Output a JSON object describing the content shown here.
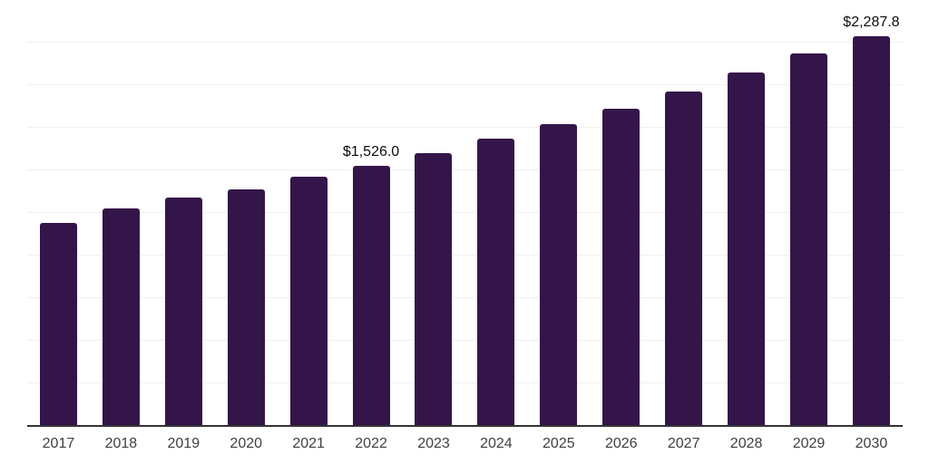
{
  "page": {
    "background_color": "#ffffff"
  },
  "chart_data": {
    "type": "bar",
    "title": "",
    "xlabel": "",
    "ylabel": "",
    "categories": [
      "2017",
      "2018",
      "2019",
      "2020",
      "2021",
      "2022",
      "2023",
      "2024",
      "2025",
      "2026",
      "2027",
      "2028",
      "2029",
      "2030"
    ],
    "values": [
      1190,
      1277,
      1341,
      1390,
      1464,
      1526.0,
      1600,
      1688,
      1769,
      1863,
      1965,
      2074,
      2188,
      2287.8
    ],
    "data_labels": [
      "",
      "",
      "",
      "",
      "",
      "$1,526.0",
      "",
      "",
      "",
      "",
      "",
      "",
      "",
      "$2,287.8"
    ],
    "ylim": [
      0,
      2500
    ],
    "gridline_step": 250,
    "grid": "horizontal-only",
    "y_tick_labels_visible": false,
    "legend": "none",
    "colors": {
      "bar": "#341549",
      "axis_line": "#333333",
      "x_tick_label": "#404040",
      "data_label": "#0d0d0d",
      "gridline": "#f0f0f0"
    }
  }
}
